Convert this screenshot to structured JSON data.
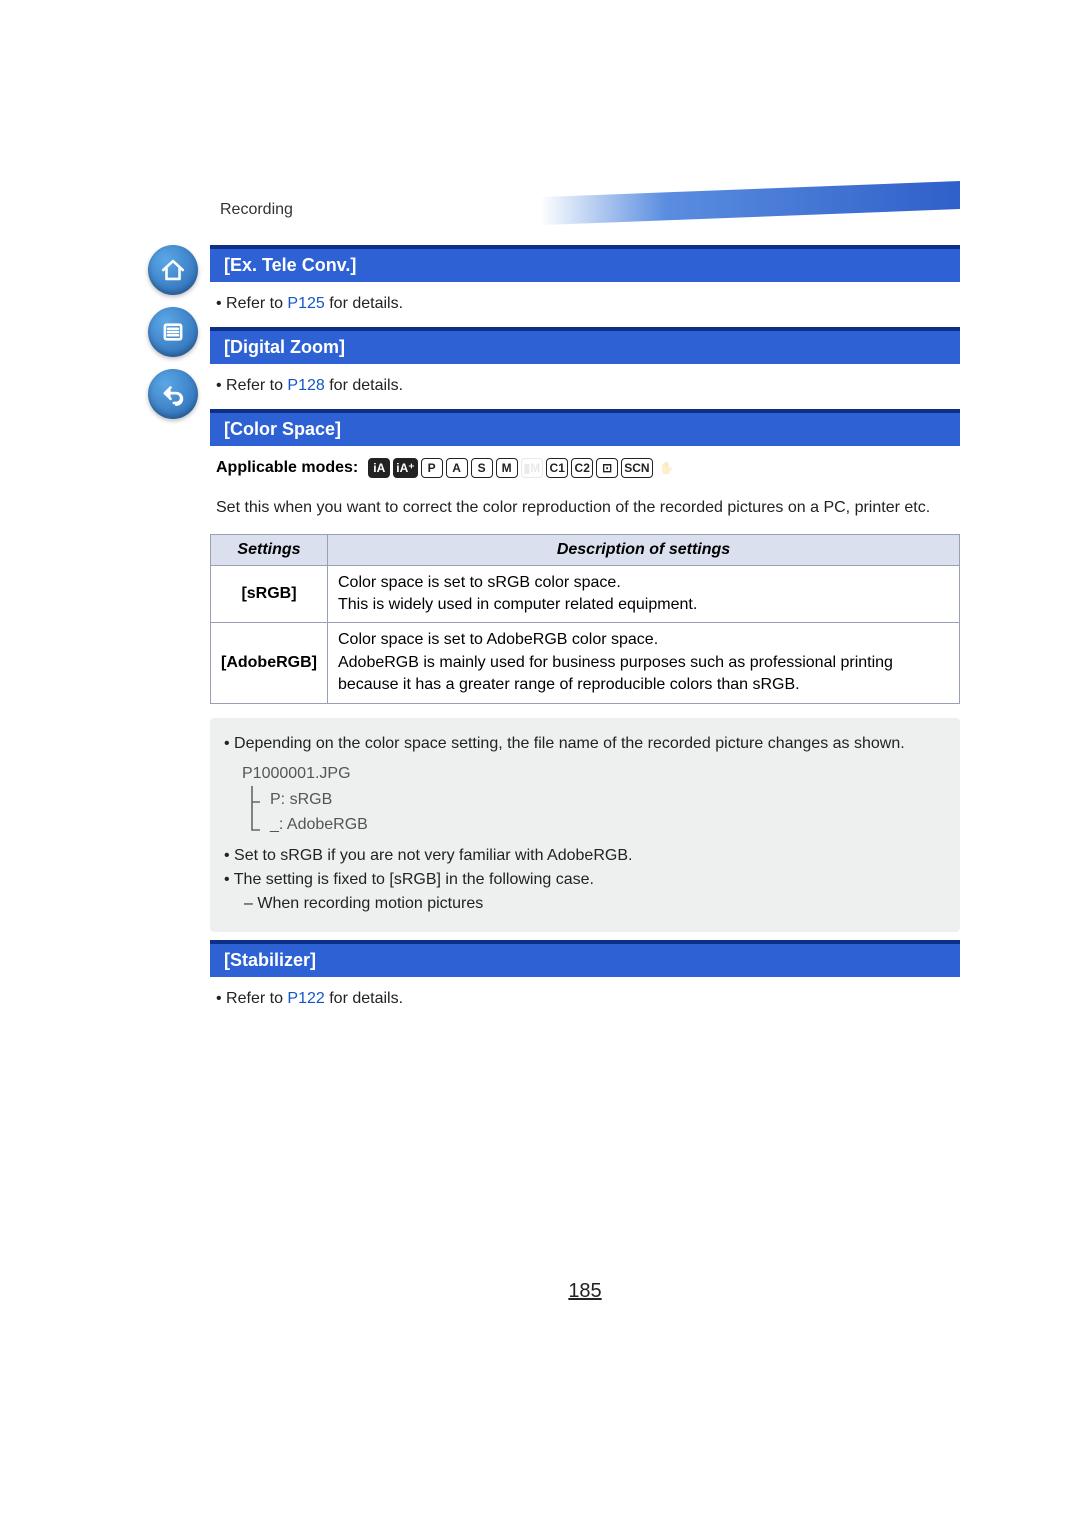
{
  "breadcrumb": "Recording",
  "sections": {
    "exTele": {
      "title": "[Ex. Tele Conv.]",
      "refer_prefix": "Refer to ",
      "refer_link": "P125",
      "refer_suffix": " for details."
    },
    "digitalZoom": {
      "title": "[Digital Zoom]",
      "refer_prefix": "Refer to ",
      "refer_link": "P128",
      "refer_suffix": " for details."
    },
    "colorSpace": {
      "title": "[Color Space]",
      "modes_label": "Applicable modes:",
      "intro": "Set this when you want to correct the color reproduction of the recorded pictures on a PC, printer etc.",
      "table": {
        "col_settings": "Settings",
        "col_desc": "Description of settings",
        "rows": [
          {
            "name": "[sRGB]",
            "desc": "Color space is set to sRGB color space.\nThis is widely used in computer related equipment."
          },
          {
            "name": "[AdobeRGB]",
            "desc": "Color space is set to AdobeRGB color space.\nAdobeRGB is mainly used for business purposes such as professional printing because it has a greater range of reproducible colors than sRGB."
          }
        ]
      },
      "notes": {
        "n1": "Depending on the color space setting, the file name of the recorded picture changes as shown.",
        "filename": "P1000001.JPG",
        "branch1": "P: sRGB",
        "branch2": "_: AdobeRGB",
        "n2": "Set to sRGB if you are not very familiar with AdobeRGB.",
        "n3": "The setting is fixed to [sRGB] in the following case.",
        "n3sub": "When recording motion pictures"
      }
    },
    "stabilizer": {
      "title": "[Stabilizer]",
      "refer_prefix": "Refer to ",
      "refer_link": "P122",
      "refer_suffix": " for details."
    }
  },
  "mode_icons": [
    {
      "label": "iA",
      "style": "filled"
    },
    {
      "label": "iA⁺",
      "style": "filled"
    },
    {
      "label": "P",
      "style": "normal"
    },
    {
      "label": "A",
      "style": "normal"
    },
    {
      "label": "S",
      "style": "normal"
    },
    {
      "label": "M",
      "style": "normal"
    },
    {
      "label": "▮M",
      "style": "faded"
    },
    {
      "label": "C1",
      "style": "normal"
    },
    {
      "label": "C2",
      "style": "normal"
    },
    {
      "label": "⊡",
      "style": "normal"
    },
    {
      "label": "SCN",
      "style": "normal"
    },
    {
      "label": "✋",
      "style": "faded noborder"
    }
  ],
  "page_number": "185",
  "colors": {
    "section_bar_bg": "#2d61d4",
    "section_bar_top": "#0e2f86",
    "link": "#1556c7",
    "table_header_bg": "#dbe0ef",
    "notes_bg": "#eef0f0"
  }
}
